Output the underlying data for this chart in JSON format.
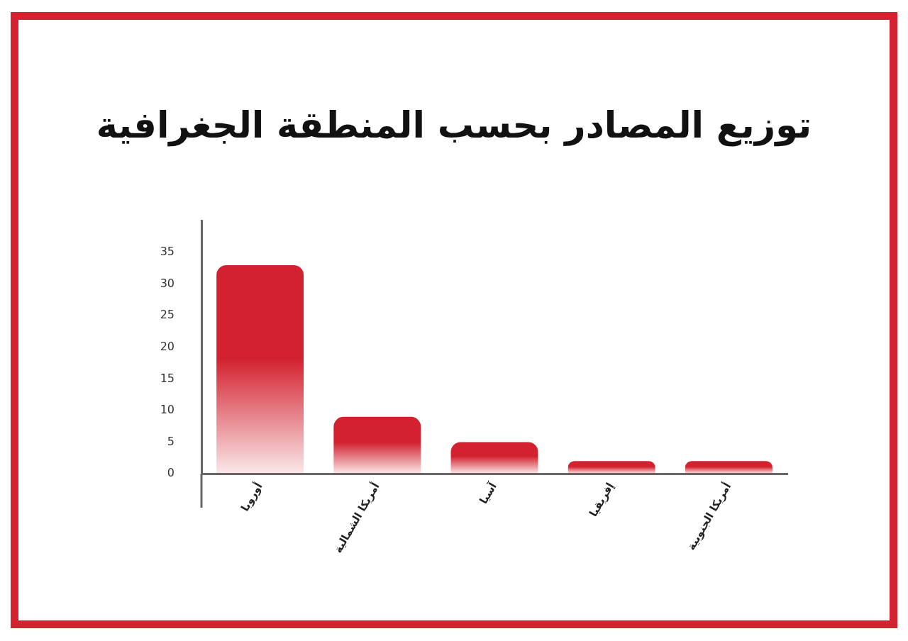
{
  "chart_data": {
    "type": "bar",
    "title": "توزيع المصادر بحسب المنطقة الجغرافية",
    "categories": [
      "أوروبا",
      "أمريكا الشمالية",
      "آسيا",
      "إفريقيا",
      "أمريكا الجنوبية"
    ],
    "values": [
      33,
      9,
      5,
      2,
      2
    ],
    "color": "#d3222f",
    "ylim": [
      0,
      40
    ],
    "yticks": [
      0,
      5,
      10,
      15,
      20,
      25,
      30,
      35
    ]
  }
}
